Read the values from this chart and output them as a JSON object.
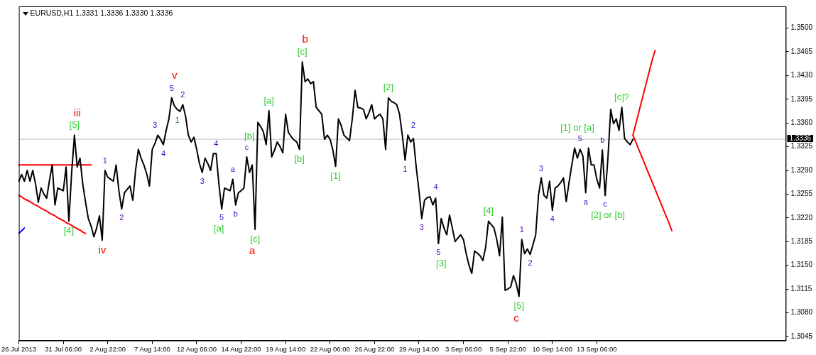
{
  "chart_data": {
    "type": "line",
    "title": "EURUSD,H1 1.3331 1.3336 1.3330 1.3336",
    "marker": "none",
    "grid": false,
    "categories": [
      "26 Jul 2013",
      null,
      null,
      null,
      null,
      null,
      null,
      null,
      null,
      null,
      null,
      null,
      null,
      null,
      null,
      null,
      "31 Jul 06:00",
      null,
      null,
      null,
      null,
      null,
      null,
      null,
      null,
      null,
      null,
      null,
      null,
      null,
      null,
      null,
      "2 Aug 22:00",
      null,
      null,
      null,
      null,
      null,
      null,
      null,
      null,
      null,
      null,
      null,
      null,
      null,
      null,
      null,
      "7 Aug 14:00",
      null,
      null,
      null,
      null,
      null,
      null,
      null,
      null,
      null,
      null,
      null,
      null,
      null,
      null,
      null,
      "12 Aug 06:00",
      null,
      null,
      null,
      null,
      null,
      null,
      null,
      null,
      null,
      null,
      null,
      null,
      null,
      null,
      null,
      "14 Aug 22:00",
      null,
      null,
      null,
      null,
      null,
      null,
      null,
      null,
      null,
      null,
      null,
      null,
      null,
      null,
      null,
      "19 Aug 14:00",
      null,
      null,
      null,
      null,
      null,
      null,
      null,
      null,
      null,
      null,
      null,
      null,
      null,
      null,
      null,
      "22 Aug 06:00",
      null,
      null,
      null,
      null,
      null,
      null,
      null,
      null,
      null,
      null,
      null,
      null,
      null,
      null,
      null,
      "26 Aug 22:00",
      null,
      null,
      null,
      null,
      null,
      null,
      null,
      null,
      null,
      null,
      null,
      null,
      null,
      null,
      null,
      "29 Aug 14:00",
      null,
      null,
      null,
      null,
      null,
      null,
      null,
      null,
      null,
      null,
      null,
      null,
      null,
      null,
      null,
      "3 Sep 06:00",
      null,
      null,
      null,
      null,
      null,
      null,
      null,
      null,
      null,
      null,
      null,
      null,
      null,
      null,
      null,
      "5 Sep 22:00",
      null,
      null,
      null,
      null,
      null,
      null,
      null,
      null,
      null,
      null,
      null,
      null,
      null,
      null,
      null,
      "10 Sep 14:00",
      null,
      null,
      null,
      null,
      null,
      null,
      null,
      null,
      null,
      null,
      null,
      null,
      null,
      null,
      null,
      "13 Sep 06:00",
      null,
      null,
      null,
      null,
      null,
      null,
      null,
      null,
      null,
      null,
      null,
      null,
      null,
      null,
      null,
      null,
      null,
      null,
      null,
      null,
      null,
      null,
      null,
      null,
      null,
      null,
      null,
      null,
      null,
      null,
      null,
      null,
      null,
      null,
      null,
      null,
      null,
      null,
      null,
      null,
      null,
      null,
      null,
      null,
      null,
      null,
      null,
      null,
      null,
      null,
      null,
      null,
      null,
      null,
      null,
      null,
      null,
      null,
      null,
      null,
      null,
      null,
      null,
      null,
      null,
      null,
      null,
      null
    ],
    "ylim": [
      1.3039,
      1.3532
    ],
    "yticks": [
      1.3045,
      {
        "value": 1.308,
        "label": "1.3080"
      },
      1.3115,
      {
        "value": 1.315,
        "label": "1.3150"
      },
      1.3185,
      {
        "value": 1.322,
        "label": "1.3220"
      },
      1.3255,
      {
        "value": 1.329,
        "label": "1.3290"
      },
      1.3325,
      {
        "value": 1.336,
        "label": "1.3360"
      },
      1.3395,
      {
        "value": 1.343,
        "label": "1.3430"
      },
      1.3465,
      {
        "value": 1.35,
        "label": "1.3500"
      }
    ],
    "series": [
      {
        "color": "#000000",
        "values": [
          1.3274,
          1.3284,
          1.3274,
          1.329,
          1.3274,
          1.329,
          1.327,
          1.3243,
          1.3264,
          1.3255,
          1.3249,
          1.3275,
          1.3298,
          1.3239,
          1.3264,
          1.3262,
          1.326,
          1.3295,
          1.3215,
          1.3287,
          1.3342,
          1.3295,
          1.3308,
          1.327,
          1.3243,
          1.3219,
          1.3208,
          1.3192,
          1.3205,
          1.3223,
          1.3187,
          1.329,
          1.328,
          1.3277,
          1.3274,
          1.3298,
          1.326,
          1.3233,
          1.3257,
          1.3262,
          1.3267,
          1.3246,
          1.329,
          1.3321,
          1.3308,
          1.3298,
          1.3285,
          1.3267,
          1.3321,
          1.333,
          1.3342,
          1.3336,
          1.3328,
          1.3349,
          1.3366,
          1.3397,
          1.3385,
          1.338,
          1.3377,
          1.3387,
          1.337,
          1.3342,
          1.3332,
          1.3339,
          1.3321,
          1.33,
          1.3287,
          1.3308,
          1.33,
          1.329,
          1.3315,
          1.3315,
          1.327,
          1.3233,
          1.3264,
          1.3262,
          1.326,
          1.3277,
          1.3239,
          1.3257,
          1.326,
          1.3264,
          1.331,
          1.3287,
          1.3298,
          1.3203,
          1.3361,
          1.3355,
          1.3347,
          1.3328,
          1.3378,
          1.331,
          1.332,
          1.3332,
          1.3325,
          1.3316,
          1.3373,
          1.3346,
          1.334,
          1.3335,
          1.3332,
          1.3321,
          1.345,
          1.3421,
          1.3425,
          1.3418,
          1.3421,
          1.3383,
          1.3378,
          1.3373,
          1.3336,
          1.3342,
          1.3336,
          1.332,
          1.3296,
          1.3366,
          1.3356,
          1.3342,
          1.3338,
          1.3334,
          1.3366,
          1.3408,
          1.3383,
          1.3382,
          1.338,
          1.3366,
          1.3375,
          1.3387,
          1.3366,
          1.337,
          1.3373,
          1.3366,
          1.3321,
          1.3397,
          1.3392,
          1.339,
          1.3387,
          1.3373,
          1.3342,
          1.3305,
          1.3342,
          1.3332,
          1.3337,
          1.3295,
          1.326,
          1.3219,
          1.3246,
          1.325,
          1.3251,
          1.3239,
          1.3249,
          1.3182,
          1.3219,
          1.3205,
          1.3195,
          1.3224,
          1.3205,
          1.3185,
          1.319,
          1.3195,
          1.3188,
          1.3167,
          1.315,
          1.3138,
          1.3171,
          1.3168,
          1.3164,
          1.3157,
          1.3177,
          1.3215,
          1.321,
          1.3205,
          1.3188,
          1.3164,
          1.3221,
          1.3113,
          1.3115,
          1.3118,
          1.3135,
          1.3123,
          1.3104,
          1.3188,
          1.3167,
          1.3174,
          1.3166,
          1.318,
          1.3195,
          1.3253,
          1.3279,
          1.3253,
          1.3249,
          1.3274,
          1.3231,
          1.3264,
          1.3267,
          1.3272,
          1.3279,
          1.3244,
          1.3272,
          1.3298,
          1.3323,
          1.3308,
          1.3321,
          1.3311,
          1.3257,
          1.3323,
          1.3298,
          1.3298,
          1.3277,
          1.3264,
          1.332,
          1.3253,
          1.3308,
          1.338,
          1.3359,
          1.3366,
          1.3349,
          1.3383,
          1.3337,
          1.3332,
          1.3328,
          1.3336,
          null,
          null,
          null,
          null,
          null,
          null,
          null,
          null,
          null,
          null,
          null,
          null,
          null,
          null,
          null,
          null,
          null,
          null,
          null,
          null,
          null,
          null,
          null,
          null,
          null,
          null,
          null,
          null,
          null,
          null,
          null,
          null,
          null,
          null,
          null,
          null,
          null,
          null,
          null,
          null,
          null,
          null,
          null,
          null,
          null,
          null,
          null,
          null,
          null,
          null,
          null,
          null,
          null,
          null,
          null
        ]
      },
      {
        "color": "#ff0000",
        "values": [
          1.3298,
          1.3298,
          1.3298,
          1.3298,
          1.3298,
          1.3298,
          1.3298,
          1.3298,
          1.3298,
          1.3298,
          1.3298,
          1.3298,
          1.3298,
          1.3298,
          1.3298,
          1.3298,
          1.3298,
          1.3298,
          1.3298,
          1.3298,
          1.3298,
          1.3298,
          1.3298,
          1.3298,
          1.3298,
          1.3298,
          1.3298,
          null,
          null,
          null,
          null,
          null,
          null,
          null,
          null,
          null,
          null,
          null,
          null,
          null,
          null,
          null,
          null,
          null,
          null,
          null,
          null,
          null,
          null,
          null,
          null,
          null,
          null,
          null,
          null,
          null,
          null,
          null,
          null,
          null,
          null,
          null,
          null,
          null,
          null,
          null,
          null,
          null,
          null,
          null,
          null,
          null,
          null,
          null,
          null,
          null,
          null,
          null,
          null,
          null,
          null,
          null,
          null,
          null,
          null,
          null,
          null,
          null,
          null,
          null,
          null,
          null,
          null,
          null,
          null,
          null,
          null,
          null,
          null,
          null,
          null,
          null,
          null,
          null,
          null,
          null,
          null,
          null,
          null,
          null,
          null,
          null,
          null,
          null,
          null,
          null,
          null,
          null,
          null,
          null,
          null,
          null,
          null,
          null,
          null,
          null,
          null,
          null,
          null,
          null,
          null,
          null,
          null,
          null,
          null,
          null,
          null,
          null,
          null,
          null,
          null,
          null,
          null,
          null,
          null,
          null,
          null,
          null,
          null,
          null,
          null,
          null,
          null,
          null,
          null,
          null,
          null,
          null,
          null,
          null,
          null,
          null,
          null,
          null,
          null,
          null,
          null,
          null,
          null,
          null,
          null,
          null,
          null,
          null,
          null,
          null,
          null,
          null,
          null,
          null,
          null,
          null,
          null,
          null,
          null,
          null,
          null,
          null,
          null,
          null,
          null,
          null,
          null,
          null,
          null,
          null,
          null,
          null,
          null,
          null,
          null,
          null,
          null,
          null,
          null,
          null,
          null,
          null,
          null,
          null,
          null,
          null,
          null,
          null,
          null,
          null,
          null,
          null,
          null,
          null,
          null,
          null,
          null,
          null,
          null,
          null,
          null,
          null,
          null,
          null,
          null,
          null,
          null,
          null,
          null,
          null,
          null,
          null,
          null,
          null,
          null,
          null,
          null,
          null,
          null,
          null,
          null,
          null,
          null,
          null,
          null,
          null,
          null,
          null,
          null,
          null,
          null,
          null,
          null,
          null,
          null,
          null,
          null,
          null,
          null,
          null,
          null,
          null,
          null,
          null,
          null,
          null,
          null,
          null,
          null,
          null,
          null
        ]
      },
      {
        "color": "#ff0000",
        "values": [
          1.3253,
          1.3251,
          1.3248,
          1.3246,
          1.3244,
          1.3241,
          1.3239,
          1.3237,
          1.3234,
          1.3232,
          1.323,
          1.3227,
          1.3225,
          1.3223,
          1.322,
          1.3218,
          1.3216,
          1.3213,
          1.3211,
          1.3209,
          1.3206,
          1.3204,
          1.3202,
          1.3199,
          1.3197,
          null,
          null,
          null,
          null,
          null,
          null,
          null,
          null,
          null,
          null,
          null,
          null,
          null,
          null,
          null,
          null,
          null,
          null,
          null,
          null,
          null,
          null,
          null,
          null,
          null,
          null,
          null,
          null,
          null,
          null,
          null,
          null,
          null,
          null,
          null,
          null,
          null,
          null,
          null,
          null,
          null,
          null,
          null,
          null,
          null,
          null,
          null,
          null,
          null,
          null,
          null,
          null,
          null,
          null,
          null,
          null,
          null,
          null,
          null,
          null,
          null,
          null,
          null,
          null,
          null,
          null,
          null,
          null,
          null,
          null,
          null,
          null,
          null,
          null,
          null,
          null,
          null,
          null,
          null,
          null,
          null,
          null,
          null,
          null,
          null,
          null,
          null,
          null,
          null,
          null,
          null,
          null,
          null,
          null,
          null,
          null,
          null,
          null,
          null,
          null,
          null,
          null,
          null,
          null,
          null,
          null,
          null,
          null,
          null,
          null,
          null,
          null,
          null,
          null,
          null,
          null,
          null,
          null,
          null,
          null,
          null,
          null,
          null,
          null,
          null,
          null,
          null,
          null,
          null,
          null,
          null,
          null,
          null,
          null,
          null,
          null,
          null,
          null,
          null,
          null,
          null,
          null,
          null,
          null,
          null,
          null,
          null,
          null,
          null,
          null,
          null,
          null,
          null,
          null,
          null,
          null,
          null,
          null,
          null,
          null,
          null,
          null,
          null,
          null,
          null,
          null,
          null,
          null,
          null,
          null,
          null,
          null,
          null,
          null,
          null,
          null,
          null,
          null,
          null,
          null,
          null,
          null,
          null,
          null,
          null,
          null,
          null,
          null,
          null,
          null,
          null,
          null,
          null,
          null,
          null,
          null,
          null,
          null,
          null,
          null,
          null,
          null,
          null,
          null,
          null,
          null,
          null,
          null,
          null,
          null,
          null,
          null,
          null,
          null,
          null,
          null,
          null,
          null,
          null,
          null,
          null,
          null,
          null,
          null,
          null,
          null,
          null,
          null,
          null,
          null,
          null,
          null,
          null,
          null,
          null,
          null,
          null,
          null,
          null,
          null,
          null,
          null,
          null,
          null,
          null,
          null,
          null,
          null,
          null,
          null,
          null,
          null
        ]
      },
      {
        "color": "#0000ff",
        "values": [
          1.3197,
          1.3201,
          1.3205,
          null,
          null,
          null,
          null,
          null,
          null,
          null,
          null,
          null,
          null,
          null,
          null,
          null,
          null,
          null,
          null,
          null,
          null,
          null,
          null,
          null,
          null,
          null,
          null,
          null,
          null,
          null,
          null,
          null,
          null,
          null,
          null,
          null,
          null,
          null,
          null,
          null,
          null,
          null,
          null,
          null,
          null,
          null,
          null,
          null,
          null,
          null,
          null,
          null,
          null,
          null,
          null,
          null,
          null,
          null,
          null,
          null,
          null,
          null,
          null,
          null,
          null,
          null,
          null,
          null,
          null,
          null,
          null,
          null,
          null,
          null,
          null,
          null,
          null,
          null,
          null,
          null,
          null,
          null,
          null,
          null,
          null,
          null,
          null,
          null,
          null,
          null,
          null,
          null,
          null,
          null,
          null,
          null,
          null,
          null,
          null,
          null,
          null,
          null,
          null,
          null,
          null,
          null,
          null,
          null,
          null,
          null,
          null,
          null,
          null,
          null,
          null,
          null,
          null,
          null,
          null,
          null,
          null,
          null,
          null,
          null,
          null,
          null,
          null,
          null,
          null,
          null,
          null,
          null,
          null,
          null,
          null,
          null,
          null,
          null,
          null,
          null,
          null,
          null,
          null,
          null,
          null,
          null,
          null,
          null,
          null,
          null,
          null,
          null,
          null,
          null,
          null,
          null,
          null,
          null,
          null,
          null,
          null,
          null,
          null,
          null,
          null,
          null,
          null,
          null,
          null,
          null,
          null,
          null,
          null,
          null,
          null,
          null,
          null,
          null,
          null,
          null,
          null,
          null,
          null,
          null,
          null,
          null,
          null,
          null,
          null,
          null,
          null,
          null,
          null,
          null,
          null,
          null,
          null,
          null,
          null,
          null,
          null,
          null,
          null,
          null,
          null,
          null,
          null,
          null,
          null,
          null,
          null,
          null,
          null,
          null,
          null,
          null,
          null,
          null,
          null,
          null,
          null,
          null,
          null,
          null,
          null,
          null,
          null,
          null,
          null,
          null,
          null,
          null,
          null,
          null,
          null,
          null,
          null,
          null,
          null,
          null,
          null,
          null,
          null,
          null,
          null,
          null,
          null,
          null,
          null,
          null,
          null,
          null,
          null,
          null,
          null,
          null,
          null,
          null,
          null,
          null,
          null,
          null,
          null,
          null,
          null,
          null,
          null,
          null,
          null,
          null,
          null,
          null,
          null,
          null,
          null,
          null,
          null
        ]
      },
      {
        "color": "#ff0000",
        "values": [
          null,
          null,
          null,
          null,
          null,
          null,
          null,
          null,
          null,
          null,
          null,
          null,
          null,
          null,
          null,
          null,
          null,
          null,
          null,
          null,
          null,
          null,
          null,
          null,
          null,
          null,
          null,
          null,
          null,
          null,
          null,
          null,
          null,
          null,
          null,
          null,
          null,
          null,
          null,
          null,
          null,
          null,
          null,
          null,
          null,
          null,
          null,
          null,
          null,
          null,
          null,
          null,
          null,
          null,
          null,
          null,
          null,
          null,
          null,
          null,
          null,
          null,
          null,
          null,
          null,
          null,
          null,
          null,
          null,
          null,
          null,
          null,
          null,
          null,
          null,
          null,
          null,
          null,
          null,
          null,
          null,
          null,
          null,
          null,
          null,
          null,
          null,
          null,
          null,
          null,
          null,
          null,
          null,
          null,
          null,
          null,
          null,
          null,
          null,
          null,
          null,
          null,
          null,
          null,
          null,
          null,
          null,
          null,
          null,
          null,
          null,
          null,
          null,
          null,
          null,
          null,
          null,
          null,
          null,
          null,
          null,
          null,
          null,
          null,
          null,
          null,
          null,
          null,
          null,
          null,
          null,
          null,
          null,
          null,
          null,
          null,
          null,
          null,
          null,
          null,
          null,
          null,
          null,
          null,
          null,
          null,
          null,
          null,
          null,
          null,
          null,
          null,
          null,
          null,
          null,
          null,
          null,
          null,
          null,
          null,
          null,
          null,
          null,
          null,
          null,
          null,
          null,
          null,
          null,
          null,
          null,
          null,
          null,
          null,
          null,
          null,
          null,
          null,
          null,
          null,
          null,
          null,
          null,
          null,
          null,
          null,
          null,
          null,
          null,
          null,
          null,
          null,
          null,
          null,
          null,
          null,
          null,
          null,
          null,
          null,
          null,
          null,
          null,
          null,
          null,
          null,
          null,
          null,
          null,
          null,
          null,
          null,
          null,
          null,
          null,
          null,
          null,
          null,
          null,
          null,
          null,
          1.3342,
          1.3358,
          1.3374,
          1.339,
          1.3406,
          1.3422,
          1.3438,
          1.3454,
          1.3467,
          null,
          null,
          null,
          null,
          null,
          null,
          null,
          null,
          null,
          null,
          null,
          null,
          null,
          null,
          null,
          null,
          null,
          null,
          null,
          null,
          null,
          null,
          null,
          null,
          null,
          null,
          null,
          null,
          null,
          null,
          null,
          null,
          null,
          null,
          null,
          null,
          null,
          null,
          null,
          null,
          null,
          null,
          null,
          null,
          null,
          null,
          null
        ]
      },
      {
        "color": "#ff0000",
        "values": [
          null,
          null,
          null,
          null,
          null,
          null,
          null,
          null,
          null,
          null,
          null,
          null,
          null,
          null,
          null,
          null,
          null,
          null,
          null,
          null,
          null,
          null,
          null,
          null,
          null,
          null,
          null,
          null,
          null,
          null,
          null,
          null,
          null,
          null,
          null,
          null,
          null,
          null,
          null,
          null,
          null,
          null,
          null,
          null,
          null,
          null,
          null,
          null,
          null,
          null,
          null,
          null,
          null,
          null,
          null,
          null,
          null,
          null,
          null,
          null,
          null,
          null,
          null,
          null,
          null,
          null,
          null,
          null,
          null,
          null,
          null,
          null,
          null,
          null,
          null,
          null,
          null,
          null,
          null,
          null,
          null,
          null,
          null,
          null,
          null,
          null,
          null,
          null,
          null,
          null,
          null,
          null,
          null,
          null,
          null,
          null,
          null,
          null,
          null,
          null,
          null,
          null,
          null,
          null,
          null,
          null,
          null,
          null,
          null,
          null,
          null,
          null,
          null,
          null,
          null,
          null,
          null,
          null,
          null,
          null,
          null,
          null,
          null,
          null,
          null,
          null,
          null,
          null,
          null,
          null,
          null,
          null,
          null,
          null,
          null,
          null,
          null,
          null,
          null,
          null,
          null,
          null,
          null,
          null,
          null,
          null,
          null,
          null,
          null,
          null,
          null,
          null,
          null,
          null,
          null,
          null,
          null,
          null,
          null,
          null,
          null,
          null,
          null,
          null,
          null,
          null,
          null,
          null,
          null,
          null,
          null,
          null,
          null,
          null,
          null,
          null,
          null,
          null,
          null,
          null,
          null,
          null,
          null,
          null,
          null,
          null,
          null,
          null,
          null,
          null,
          null,
          null,
          null,
          null,
          null,
          null,
          null,
          null,
          null,
          null,
          null,
          null,
          null,
          null,
          null,
          null,
          null,
          null,
          null,
          null,
          null,
          null,
          null,
          null,
          null,
          null,
          null,
          null,
          null,
          null,
          null,
          1.3342,
          1.3332,
          1.3322,
          1.3312,
          1.3302,
          1.3292,
          1.3282,
          1.3272,
          1.3262,
          1.3252,
          1.3242,
          1.3232,
          1.3222,
          1.3212,
          1.3201,
          null,
          null,
          null,
          null,
          null,
          null,
          null,
          null,
          null,
          null,
          null,
          null,
          null,
          null,
          null,
          null,
          null,
          null,
          null,
          null,
          null,
          null,
          null,
          null,
          null,
          null,
          null,
          null,
          null,
          null,
          null,
          null,
          null,
          null,
          null,
          null,
          null,
          null,
          null,
          null,
          null
        ]
      }
    ],
    "ref_lines": [
      {
        "axis": "y",
        "value": 1.3336,
        "label": "1.3336",
        "color": "#c0c0c0"
      }
    ],
    "annotations": [
      "[4]",
      "[5]",
      "iii",
      "iv",
      "1",
      "2",
      "3",
      "4",
      "5",
      "v",
      "1",
      "2",
      "3",
      "4",
      "[a]",
      "5",
      "a",
      "b",
      "c",
      "[b]",
      "a",
      "[c]",
      "[a]",
      "[b]",
      "[c]",
      "b",
      "[1]",
      "[2]",
      "1",
      "2",
      "3",
      "4",
      "5",
      "[3]",
      "[4]",
      "c",
      "[5]",
      "1",
      "2",
      "3",
      "4",
      "[1] or [a]",
      "5",
      "a",
      "b",
      "c",
      "[2] or [b]",
      "[c]?"
    ]
  }
}
